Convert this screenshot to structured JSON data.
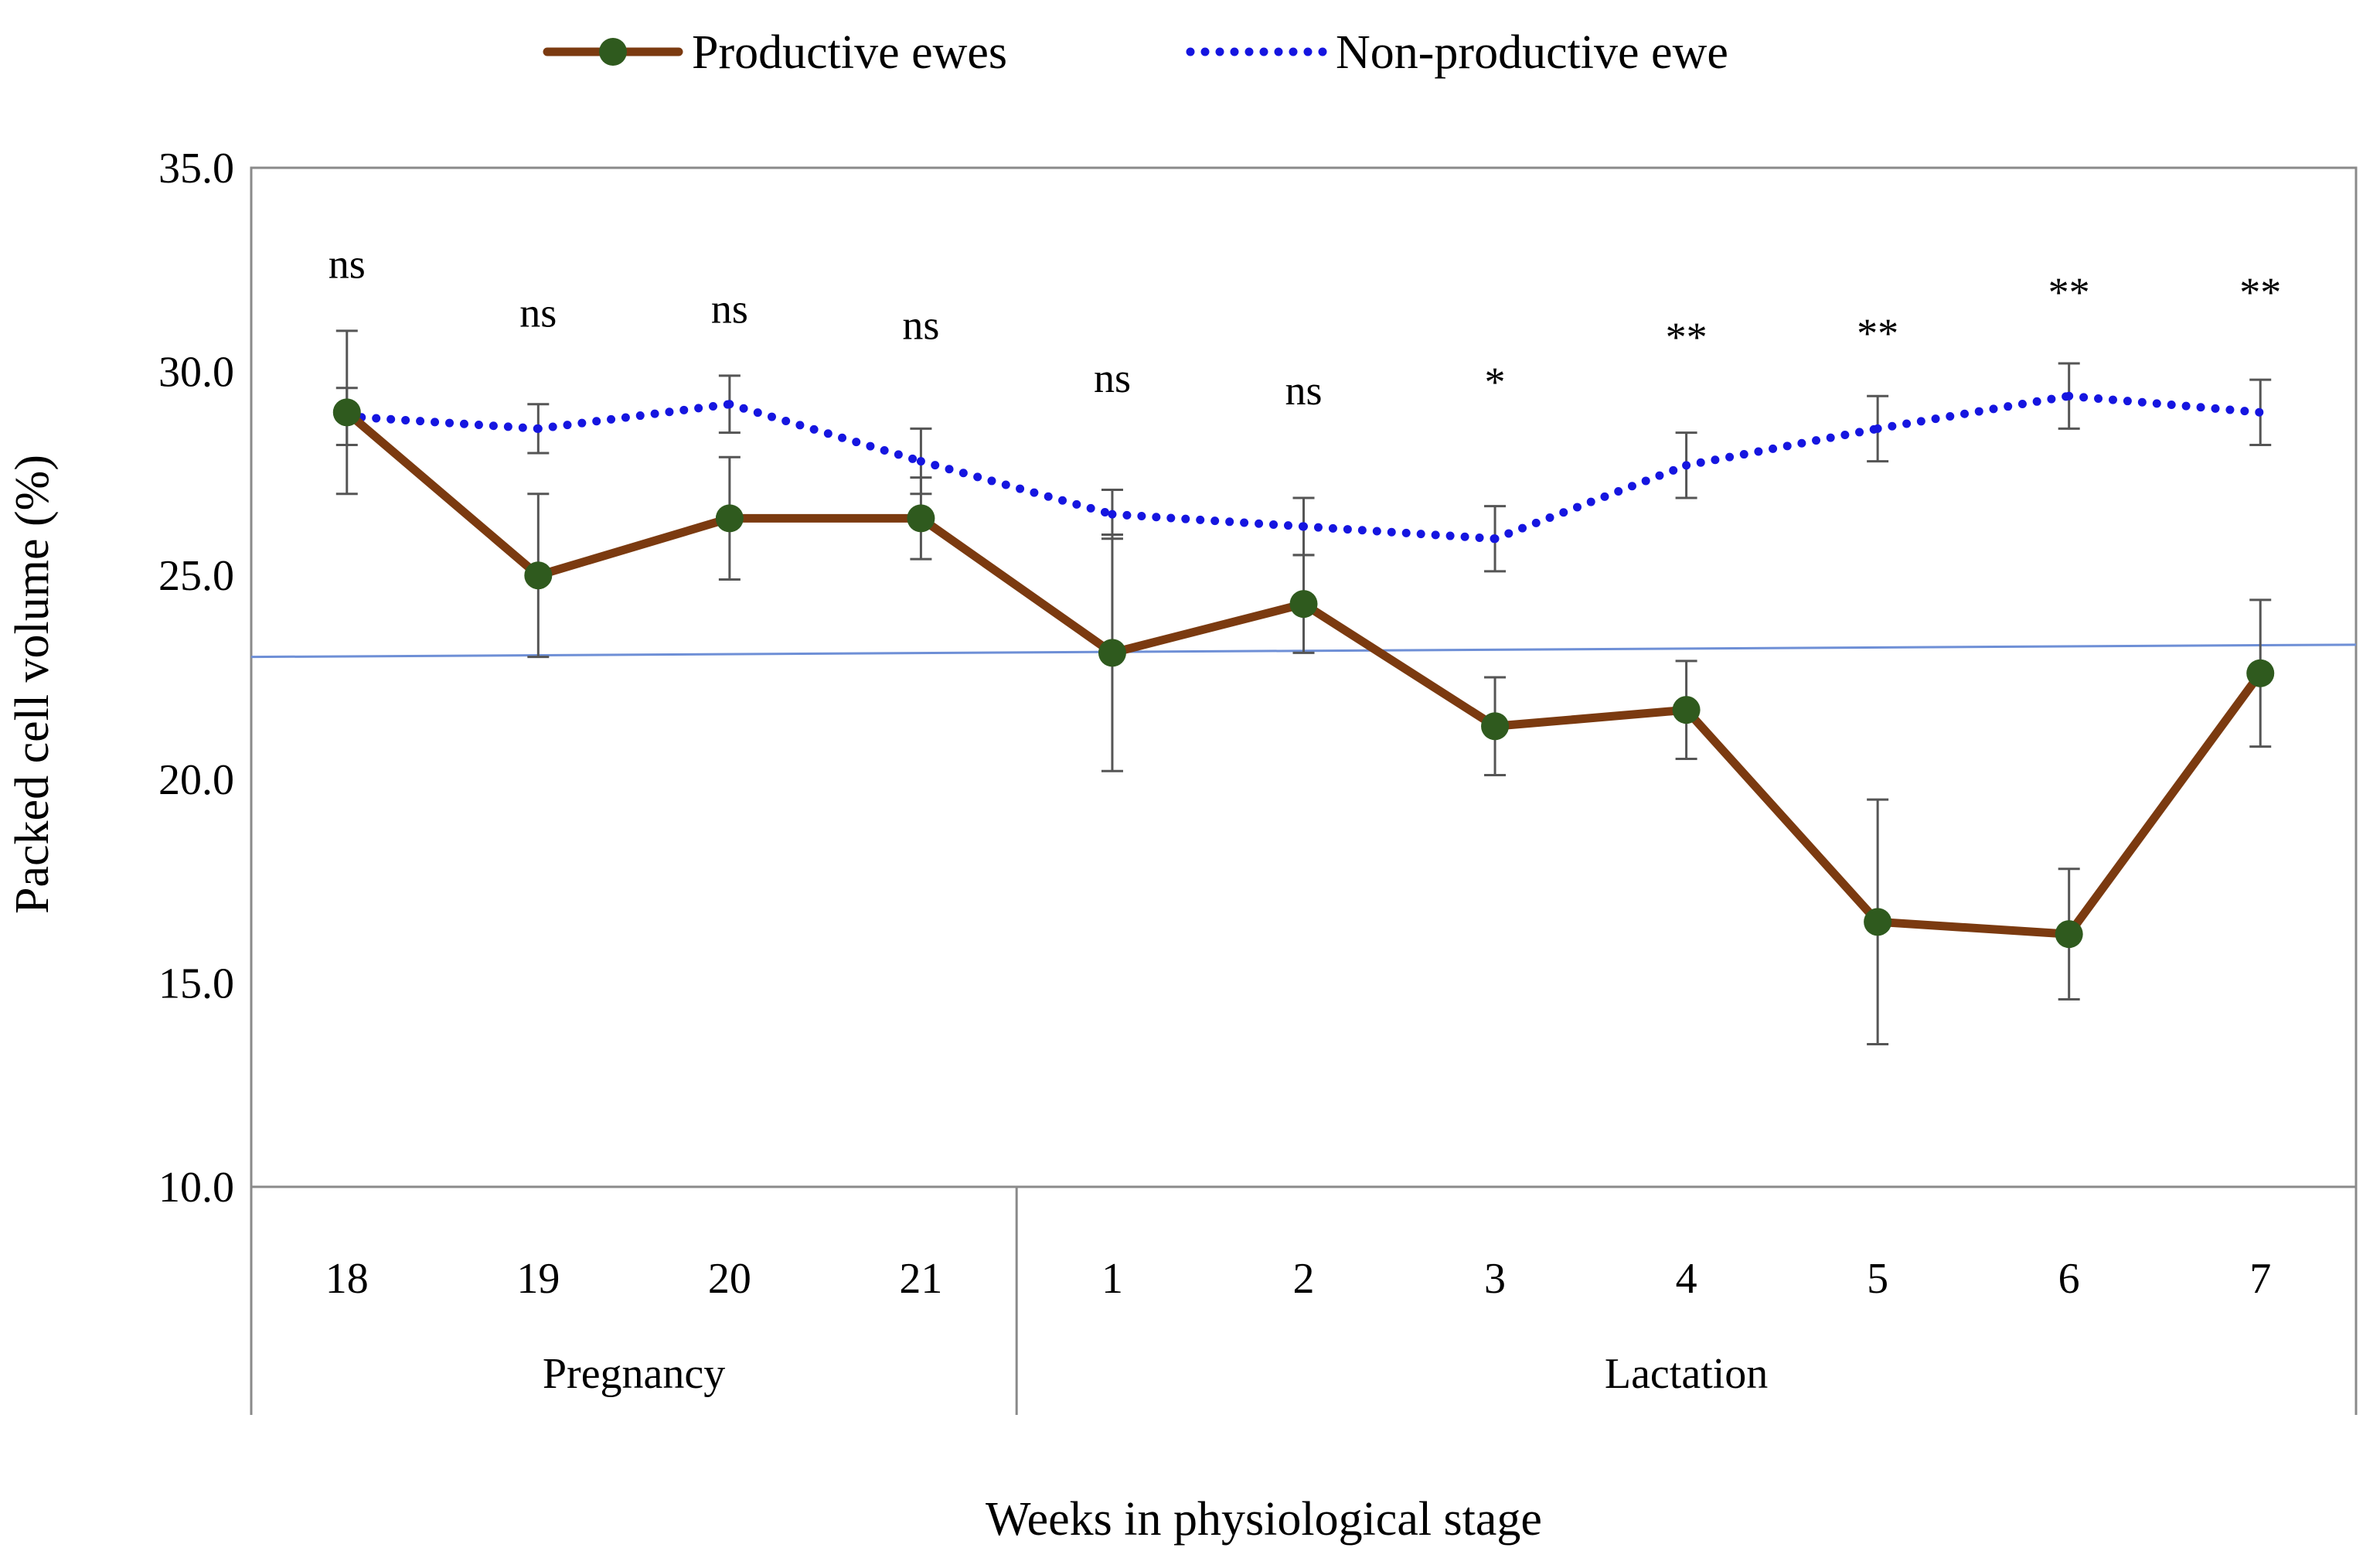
{
  "chart_data": {
    "type": "line",
    "title": "",
    "xlabel": "Weeks in physiological stage",
    "ylabel": "Packed cell volume (%)",
    "ylim": [
      10,
      35
    ],
    "yticks": [
      "10.0",
      "15.0",
      "20.0",
      "25.0",
      "30.0",
      "35.0"
    ],
    "ytick_values": [
      10,
      15,
      20,
      25,
      30,
      35
    ],
    "categories": [
      "18",
      "19",
      "20",
      "21",
      "1",
      "2",
      "3",
      "4",
      "5",
      "6",
      "7"
    ],
    "groups": [
      {
        "label": "Pregnancy",
        "start": 0,
        "end": 3
      },
      {
        "label": "Lactation",
        "start": 4,
        "end": 10
      }
    ],
    "legend_position": "top",
    "grid": false,
    "series": [
      {
        "name": "Productive ewes",
        "style": "solid-with-markers",
        "color": "#7B3A10",
        "marker_color": "#2F5A1E",
        "values": [
          29.0,
          25.0,
          26.4,
          26.4,
          23.1,
          24.3,
          21.3,
          21.7,
          16.5,
          16.2,
          22.6
        ],
        "error": [
          2.0,
          2.0,
          1.5,
          1.0,
          2.9,
          1.2,
          1.2,
          1.2,
          3.0,
          1.6,
          1.8
        ]
      },
      {
        "name": "Non-productive ewe",
        "style": "dotted",
        "color": "#1515E0",
        "values": [
          28.9,
          28.6,
          29.2,
          27.8,
          26.5,
          26.2,
          25.9,
          27.7,
          28.6,
          29.4,
          29.0
        ],
        "error": [
          0.7,
          0.6,
          0.7,
          0.8,
          0.6,
          0.7,
          0.8,
          0.8,
          0.8,
          0.8,
          0.8
        ]
      }
    ],
    "significance": [
      "ns",
      "ns",
      "ns",
      "ns",
      "ns",
      "ns",
      "*",
      "**",
      "**",
      "**",
      "**"
    ],
    "significance_y": [
      32.3,
      31.1,
      31.2,
      30.8,
      29.5,
      29.2,
      29.4,
      30.5,
      30.6,
      31.6,
      31.6
    ],
    "reference_line": {
      "y_start": 23.0,
      "y_end": 23.3,
      "color": "#6E8FD6"
    }
  }
}
